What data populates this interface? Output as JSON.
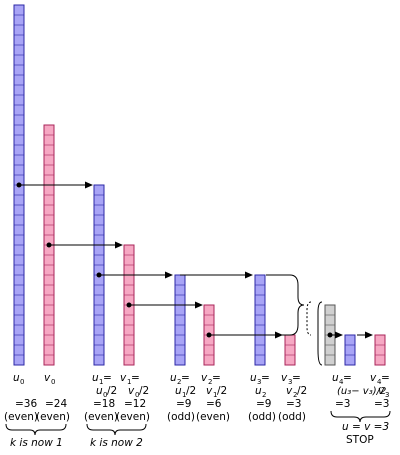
{
  "colors": {
    "u_fill": "#a8a4f6",
    "u_stroke": "#2b27a6",
    "v_fill": "#f6a8c3",
    "v_stroke": "#a8245a",
    "g_fill": "#d0d0d0",
    "g_stroke": "#555555"
  },
  "unit": 10,
  "bars": [
    {
      "id": "u0",
      "color": "u",
      "value": 36
    },
    {
      "id": "v0",
      "color": "v",
      "value": 24
    },
    {
      "id": "u1",
      "color": "u",
      "value": 18
    },
    {
      "id": "v1",
      "color": "v",
      "value": 12
    },
    {
      "id": "u2",
      "color": "u",
      "value": 9
    },
    {
      "id": "v2",
      "color": "v",
      "value": 6
    },
    {
      "id": "u3",
      "color": "u",
      "value": 9
    },
    {
      "id": "v3",
      "color": "v",
      "value": 3
    },
    {
      "id": "diff",
      "color": "g",
      "value": 6
    },
    {
      "id": "u4",
      "color": "u",
      "value": 3
    },
    {
      "id": "v4",
      "color": "v",
      "value": 3
    }
  ],
  "labels": {
    "u0_name": "u",
    "u0_sub": "0",
    "v0_name": "v",
    "v0_sub": "0",
    "u0_val": "=36",
    "v0_val": "=24",
    "u0_par": "(even)",
    "v0_par": "(even)",
    "k1": "k is now 1",
    "u1_name": "u",
    "u1_sub": "1",
    "u1_eq": "=",
    "u1_expr_a": "u",
    "u1_expr_sub": "0",
    "u1_expr_b": "/2",
    "u1_val": "=18",
    "u1_par": "(even)",
    "v1_name": "v",
    "v1_sub": "1",
    "v1_eq": "=",
    "v1_expr_a": "v",
    "v1_expr_sub": "0",
    "v1_expr_b": "/2",
    "v1_val": "=12",
    "v1_par": "(even)",
    "k2": "k is now 2",
    "u2_name": "u",
    "u2_sub": "2",
    "u2_eq": "=",
    "u2_expr_a": "u",
    "u2_expr_sub": "1",
    "u2_expr_b": "/2",
    "u2_val": "=9",
    "u2_par": "(odd)",
    "v2_name": "v",
    "v2_sub": "2",
    "v2_eq": "=",
    "v2_expr_a": "v",
    "v2_expr_sub": "1",
    "v2_expr_b": "/2",
    "v2_val": "=6",
    "v2_par": "(even)",
    "u3_name": "u",
    "u3_sub": "3",
    "u3_eq": "=",
    "u3_expr_a": "u",
    "u3_expr_sub": "2",
    "u3_val": "=9",
    "u3_par": "(odd)",
    "v3_name": "v",
    "v3_sub": "3",
    "v3_eq": "=",
    "v3_expr_a": "v",
    "v3_expr_sub": "2",
    "v3_expr_b": "/2",
    "v3_val": "=3",
    "v3_par": "(odd)",
    "u4_name": "u",
    "u4_sub": "4",
    "u4_eq": "=",
    "u4_expr": "(u₃− v₃)/2",
    "u4_val": "=3",
    "v4_name": "v",
    "v4_sub": "4",
    "v4_eq": "=",
    "v4_expr_a": "v",
    "v4_expr_sub": "3",
    "v4_val": "=3",
    "result": "u = v =3",
    "stop": "STOP"
  }
}
